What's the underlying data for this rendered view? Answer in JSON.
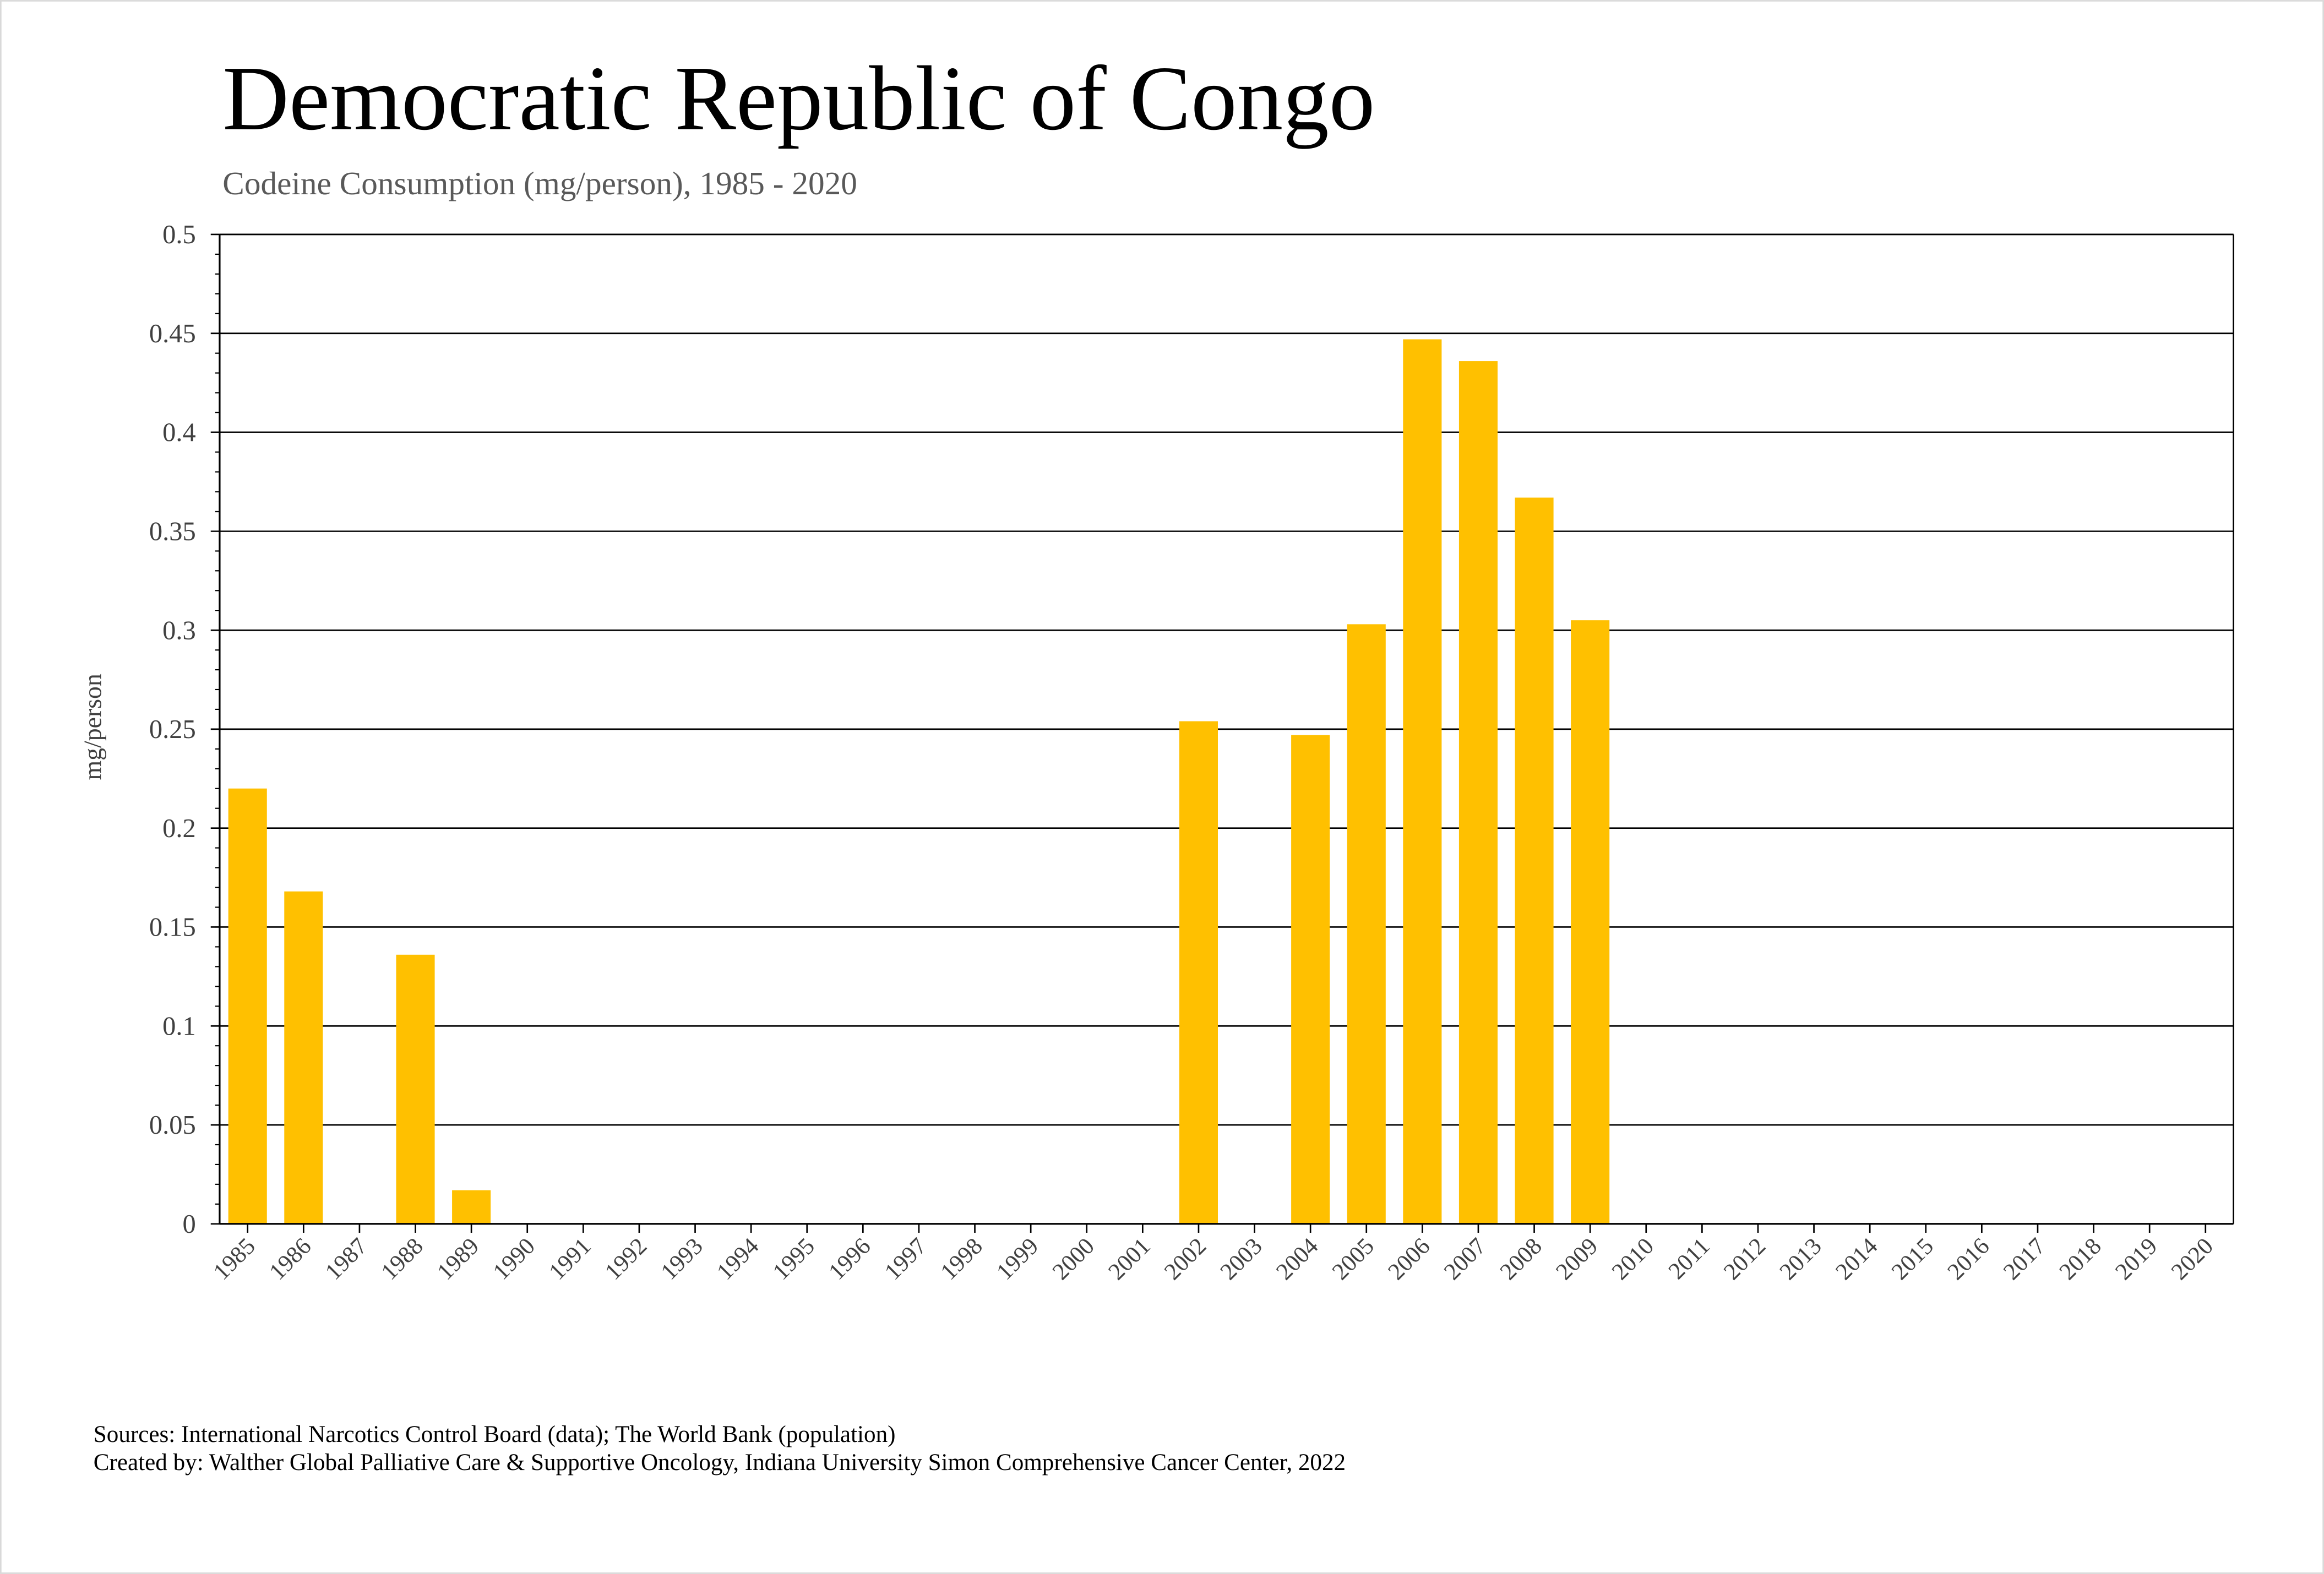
{
  "chart_data": {
    "type": "bar",
    "title": "Democratic Republic of Congo",
    "subtitle": "Codeine Consumption (mg/person), 1985 - 2020",
    "xlabel": "",
    "ylabel": "mg/person",
    "ylim": [
      0,
      0.5
    ],
    "yticks": [
      "0",
      "0.05",
      "0.1",
      "0.15",
      "0.2",
      "0.25",
      "0.3",
      "0.35",
      "0.4",
      "0.45",
      "0.5"
    ],
    "grid": true,
    "bar_color": "#FFC000",
    "categories": [
      "1985",
      "1986",
      "1987",
      "1988",
      "1989",
      "1990",
      "1991",
      "1992",
      "1993",
      "1994",
      "1995",
      "1996",
      "1997",
      "1998",
      "1999",
      "2000",
      "2001",
      "2002",
      "2003",
      "2004",
      "2005",
      "2006",
      "2007",
      "2008",
      "2009",
      "2010",
      "2011",
      "2012",
      "2013",
      "2014",
      "2015",
      "2016",
      "2017",
      "2018",
      "2019",
      "2020"
    ],
    "values": [
      0.22,
      0.168,
      null,
      0.136,
      0.017,
      null,
      null,
      null,
      null,
      null,
      null,
      null,
      null,
      null,
      null,
      null,
      null,
      0.254,
      null,
      0.247,
      0.303,
      0.447,
      0.436,
      0.367,
      0.305,
      null,
      null,
      null,
      null,
      null,
      null,
      null,
      null,
      null,
      null,
      null
    ]
  },
  "footer": {
    "sources": "Sources: International Narcotics Control Board (data); The World Bank (population)",
    "created_by": "Created by: Walther Global Palliative Care & Supportive Oncology, Indiana University Simon Comprehensive Cancer Center, 2022"
  }
}
